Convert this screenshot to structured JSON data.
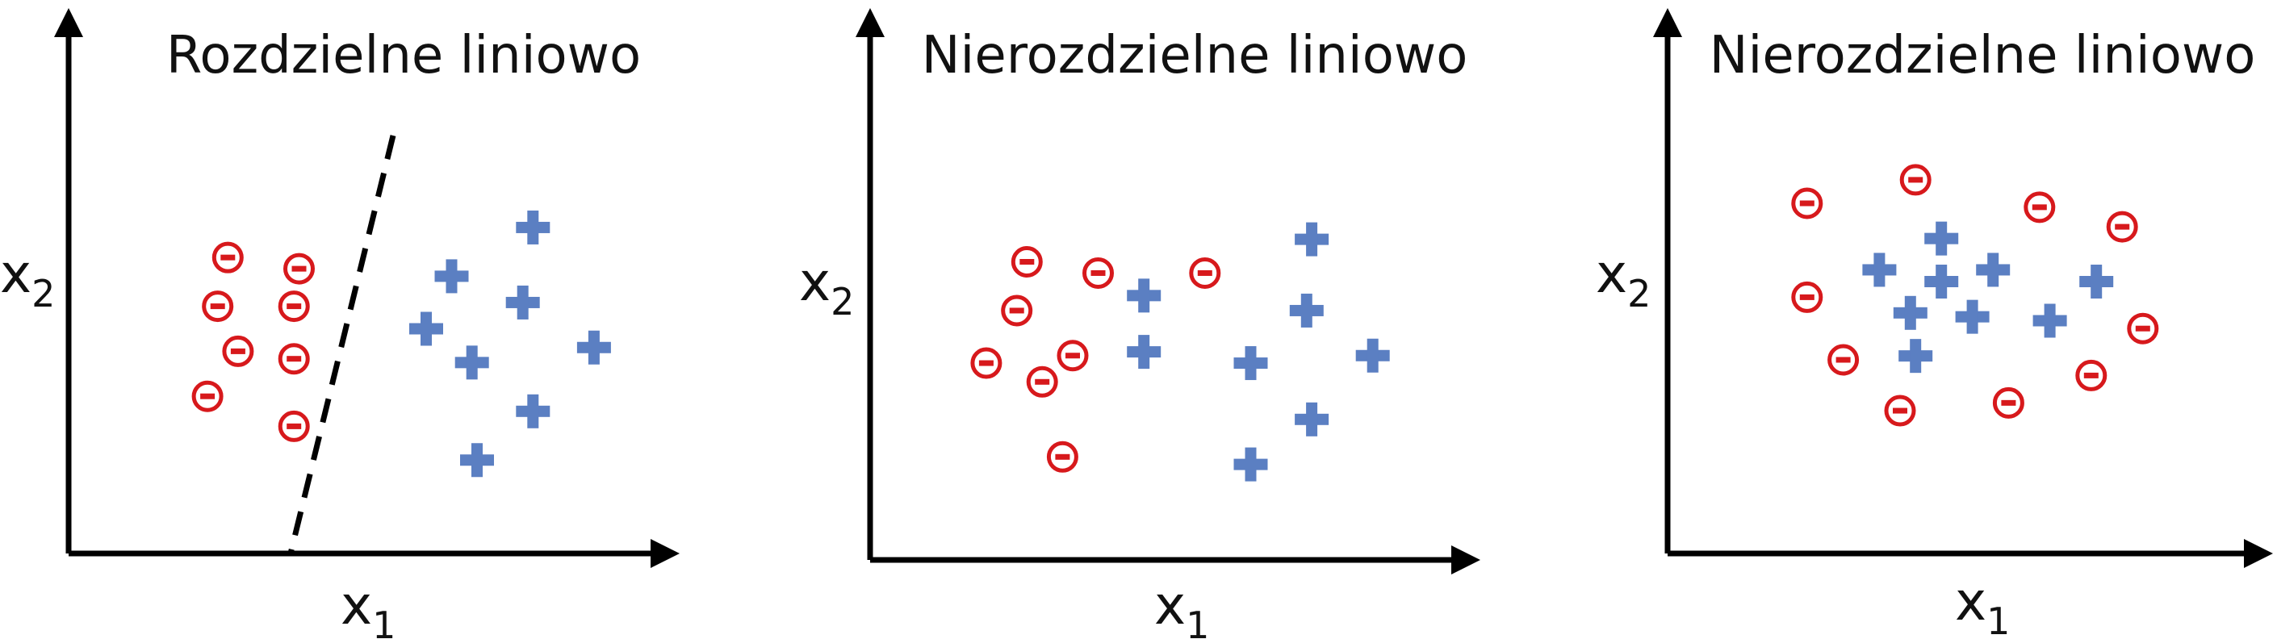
{
  "colors": {
    "negative": "#d7191c",
    "positive": "#5b7fc2",
    "axis": "#000000"
  },
  "chart_data": [
    {
      "type": "scatter",
      "title": "Rozdzielne liniowo",
      "xlabel": {
        "base": "x",
        "sub": "1"
      },
      "ylabel": {
        "base": "x",
        "sub": "2"
      },
      "legend": "none",
      "grid": false,
      "decision_boundary": "dashed line",
      "series": [
        {
          "marker": "minus-circle",
          "points": [
            [
              2.1,
              6.9
            ],
            [
              3.5,
              6.6
            ],
            [
              1.9,
              5.6
            ],
            [
              3.4,
              5.6
            ],
            [
              2.3,
              4.4
            ],
            [
              3.4,
              4.2
            ],
            [
              1.7,
              3.2
            ],
            [
              3.4,
              2.4
            ]
          ]
        },
        {
          "marker": "plus",
          "points": [
            [
              8.1,
              7.7
            ],
            [
              6.5,
              6.4
            ],
            [
              7.9,
              5.7
            ],
            [
              6.0,
              5.0
            ],
            [
              6.9,
              4.1
            ],
            [
              9.3,
              4.5
            ],
            [
              8.1,
              2.8
            ],
            [
              7.0,
              1.5
            ]
          ]
        }
      ]
    },
    {
      "type": "scatter",
      "title": "Nierozdzielne liniowo",
      "xlabel": {
        "base": "x",
        "sub": "1"
      },
      "ylabel": {
        "base": "x",
        "sub": "2"
      },
      "legend": "none",
      "grid": false,
      "series": [
        {
          "marker": "minus-circle",
          "points": [
            [
              2.1,
              7.0
            ],
            [
              3.5,
              6.7
            ],
            [
              1.9,
              5.7
            ],
            [
              1.3,
              4.3
            ],
            [
              3.0,
              4.5
            ],
            [
              2.4,
              3.8
            ],
            [
              5.6,
              6.7
            ],
            [
              2.8,
              1.8
            ]
          ]
        },
        {
          "marker": "plus",
          "points": [
            [
              4.4,
              6.1
            ],
            [
              7.7,
              7.6
            ],
            [
              7.6,
              5.7
            ],
            [
              4.4,
              4.6
            ],
            [
              6.5,
              4.3
            ],
            [
              8.9,
              4.5
            ],
            [
              7.7,
              2.8
            ],
            [
              6.5,
              1.6
            ]
          ]
        }
      ]
    },
    {
      "type": "scatter",
      "title": "Nierozdzielne liniowo",
      "ylabel": {
        "base": "x",
        "sub": "2"
      },
      "xlabel": {
        "base": "x",
        "sub": "1"
      },
      "legend": "none",
      "grid": false,
      "series": [
        {
          "marker": "minus-circle",
          "points": [
            [
              1.7,
              8.0
            ],
            [
              3.8,
              8.6
            ],
            [
              6.2,
              7.9
            ],
            [
              7.8,
              7.4
            ],
            [
              1.7,
              5.6
            ],
            [
              8.2,
              4.8
            ],
            [
              2.4,
              4.0
            ],
            [
              7.2,
              3.6
            ],
            [
              3.5,
              2.7
            ],
            [
              5.6,
              2.9
            ]
          ]
        },
        {
          "marker": "plus",
          "points": [
            [
              4.3,
              7.1
            ],
            [
              3.1,
              6.3
            ],
            [
              4.3,
              6.0
            ],
            [
              5.3,
              6.3
            ],
            [
              3.7,
              5.2
            ],
            [
              4.9,
              5.1
            ],
            [
              6.4,
              5.0
            ],
            [
              7.3,
              6.0
            ],
            [
              3.8,
              4.1
            ]
          ]
        }
      ]
    }
  ]
}
